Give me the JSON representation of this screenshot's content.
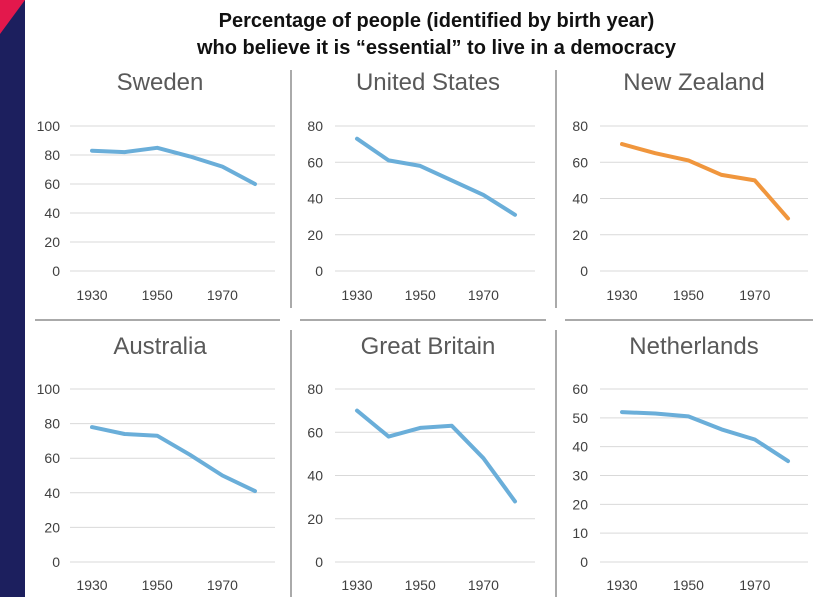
{
  "title_lines": [
    "Percentage of people (identified by birth year)",
    "who believe it is “essential” to live in a democracy"
  ],
  "colors": {
    "sidebar": "#1c1f5e",
    "corner": "#e3184c",
    "series_default": "#6aaed9",
    "series_highlight": "#f0963d",
    "grid": "#d9d9d9",
    "divider": "#555555"
  },
  "chart_data": [
    {
      "type": "line",
      "title": "Sweden",
      "x": [
        1930,
        1940,
        1950,
        1960,
        1970,
        1980
      ],
      "values": [
        83,
        82,
        85,
        79,
        72,
        60
      ],
      "ylim": [
        0,
        100
      ],
      "yticks": [
        0,
        20,
        40,
        60,
        80,
        100
      ],
      "xticks": [
        1930,
        1950,
        1970
      ],
      "grid": true,
      "color": "#6aaed9"
    },
    {
      "type": "line",
      "title": "United States",
      "x": [
        1930,
        1940,
        1950,
        1960,
        1970,
        1980
      ],
      "values": [
        73,
        61,
        58,
        50,
        42,
        31
      ],
      "ylim": [
        0,
        80
      ],
      "yticks": [
        0,
        20,
        40,
        60,
        80
      ],
      "xticks": [
        1930,
        1950,
        1970
      ],
      "grid": true,
      "color": "#6aaed9"
    },
    {
      "type": "line",
      "title": "New Zealand",
      "x": [
        1930,
        1940,
        1950,
        1960,
        1970,
        1980
      ],
      "values": [
        70,
        65,
        61,
        53,
        50,
        29
      ],
      "ylim": [
        0,
        80
      ],
      "yticks": [
        0,
        20,
        40,
        60,
        80
      ],
      "xticks": [
        1930,
        1950,
        1970
      ],
      "grid": true,
      "color": "#f0963d"
    },
    {
      "type": "line",
      "title": "Australia",
      "x": [
        1930,
        1940,
        1950,
        1960,
        1970,
        1980
      ],
      "values": [
        78,
        74,
        73,
        62,
        50,
        41
      ],
      "ylim": [
        0,
        100
      ],
      "yticks": [
        0,
        20,
        40,
        60,
        80,
        100
      ],
      "xticks": [
        1930,
        1950,
        1970
      ],
      "grid": true,
      "color": "#6aaed9"
    },
    {
      "type": "line",
      "title": "Great Britain",
      "x": [
        1930,
        1940,
        1950,
        1960,
        1970,
        1980
      ],
      "values": [
        70,
        58,
        62,
        63,
        48,
        28
      ],
      "ylim": [
        0,
        80
      ],
      "yticks": [
        0,
        20,
        40,
        60,
        80
      ],
      "xticks": [
        1930,
        1950,
        1970
      ],
      "grid": true,
      "color": "#6aaed9"
    },
    {
      "type": "line",
      "title": "Netherlands",
      "x": [
        1930,
        1940,
        1950,
        1960,
        1970,
        1980
      ],
      "values": [
        52,
        51.5,
        50.5,
        46,
        42.5,
        35
      ],
      "ylim": [
        0,
        60
      ],
      "yticks": [
        0,
        10,
        20,
        30,
        40,
        50,
        60
      ],
      "xticks": [
        1930,
        1950,
        1970
      ],
      "grid": true,
      "color": "#6aaed9"
    }
  ]
}
